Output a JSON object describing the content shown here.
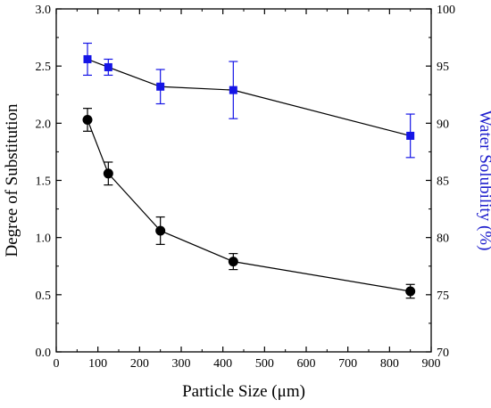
{
  "chart_data": {
    "type": "line",
    "title": "",
    "xlabel": "Particle Size (μm)",
    "ylabel_left": "Degree of Substitution",
    "ylabel_right": "Water Solubility (%)",
    "xlim": [
      0,
      900
    ],
    "ylim_left": [
      0.0,
      3.0
    ],
    "ylim_right": [
      70,
      100
    ],
    "x_ticks": [
      0,
      100,
      200,
      300,
      400,
      500,
      600,
      700,
      800,
      900
    ],
    "y_left_ticks": [
      "0.0",
      "0.5",
      "1.0",
      "1.5",
      "2.0",
      "2.5",
      "3.0"
    ],
    "y_right_ticks": [
      "70",
      "75",
      "80",
      "85",
      "90",
      "95",
      "100"
    ],
    "grid": false,
    "legend": "none",
    "series": [
      {
        "axis": "left",
        "marker": "circle",
        "color": "#000000",
        "x": [
          75,
          125,
          250,
          425,
          850
        ],
        "y": [
          2.03,
          1.56,
          1.06,
          0.79,
          0.53
        ],
        "error": [
          0.1,
          0.1,
          0.12,
          0.07,
          0.06
        ]
      },
      {
        "axis": "right",
        "marker": "square",
        "color": "#1515e6",
        "x": [
          75,
          125,
          250,
          425,
          850
        ],
        "y": [
          95.6,
          94.9,
          93.2,
          92.9,
          88.9
        ],
        "error": [
          1.4,
          0.7,
          1.5,
          2.5,
          1.9
        ]
      }
    ]
  }
}
